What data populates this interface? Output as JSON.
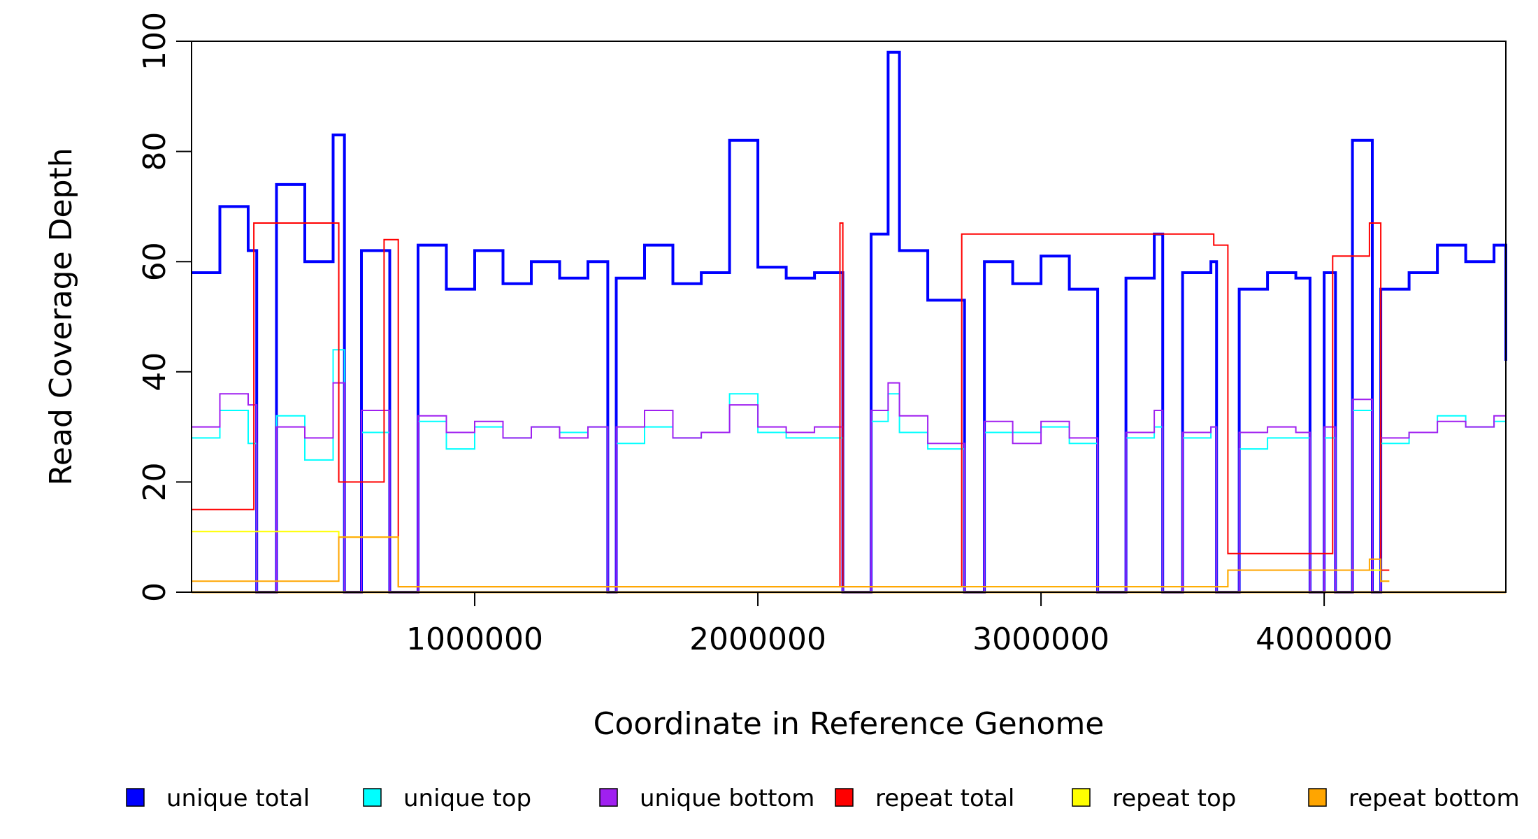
{
  "chart_data": {
    "type": "line",
    "title": "",
    "xlabel": "Coordinate in Reference Genome",
    "ylabel": "Read Coverage Depth",
    "xlim": [
      0,
      4641652
    ],
    "ylim": [
      0,
      100
    ],
    "x_ticks": [
      1000000,
      2000000,
      3000000,
      4000000
    ],
    "x_tick_labels": [
      "1000000",
      "2000000",
      "3000000",
      "4000000"
    ],
    "y_ticks": [
      0,
      20,
      40,
      60,
      80,
      100
    ],
    "y_tick_labels": [
      "0",
      "20",
      "40",
      "60",
      "80",
      "100"
    ],
    "grid": false,
    "legend_position": "bottom",
    "series": [
      {
        "name": "unique total",
        "color": "#0000ff",
        "x": [
          0,
          100000,
          200000,
          230000,
          300000,
          400000,
          500000,
          540000,
          600000,
          700000,
          800000,
          900000,
          1000000,
          1100000,
          1200000,
          1300000,
          1400000,
          1470000,
          1500000,
          1600000,
          1700000,
          1800000,
          1900000,
          2000000,
          2100000,
          2200000,
          2300000,
          2400000,
          2460000,
          2500000,
          2600000,
          2730000,
          2800000,
          2900000,
          3000000,
          3100000,
          3200000,
          3300000,
          3400000,
          3430000,
          3500000,
          3600000,
          3620000,
          3700000,
          3800000,
          3900000,
          3950000,
          4000000,
          4040000,
          4100000,
          4170000,
          4200000,
          4300000,
          4400000,
          4500000,
          4600000,
          4641652
        ],
        "y": [
          58,
          70,
          62,
          0,
          74,
          60,
          83,
          0,
          62,
          0,
          63,
          55,
          62,
          56,
          60,
          57,
          60,
          0,
          57,
          63,
          56,
          58,
          82,
          59,
          57,
          58,
          0,
          65,
          98,
          62,
          53,
          0,
          60,
          56,
          61,
          55,
          0,
          57,
          65,
          0,
          58,
          60,
          0,
          55,
          58,
          57,
          0,
          58,
          0,
          82,
          0,
          55,
          58,
          63,
          60,
          63,
          42
        ]
      },
      {
        "name": "unique top",
        "color": "#00ffff",
        "x": [
          0,
          100000,
          200000,
          230000,
          300000,
          400000,
          500000,
          540000,
          600000,
          700000,
          800000,
          900000,
          1000000,
          1100000,
          1200000,
          1300000,
          1400000,
          1470000,
          1500000,
          1600000,
          1700000,
          1800000,
          1900000,
          2000000,
          2100000,
          2200000,
          2300000,
          2400000,
          2460000,
          2500000,
          2600000,
          2730000,
          2800000,
          2900000,
          3000000,
          3100000,
          3200000,
          3300000,
          3400000,
          3430000,
          3500000,
          3600000,
          3620000,
          3700000,
          3800000,
          3900000,
          3950000,
          4000000,
          4040000,
          4100000,
          4170000,
          4200000,
          4300000,
          4400000,
          4500000,
          4600000,
          4641652
        ],
        "y": [
          28,
          33,
          27,
          0,
          32,
          24,
          44,
          0,
          29,
          0,
          31,
          26,
          30,
          28,
          30,
          29,
          30,
          0,
          27,
          30,
          28,
          29,
          36,
          29,
          28,
          28,
          0,
          31,
          36,
          29,
          26,
          0,
          29,
          29,
          30,
          27,
          0,
          28,
          30,
          0,
          28,
          30,
          0,
          26,
          28,
          28,
          0,
          28,
          0,
          33,
          0,
          27,
          29,
          32,
          30,
          31,
          24
        ]
      },
      {
        "name": "unique bottom",
        "color": "#a020f0",
        "x": [
          0,
          100000,
          200000,
          230000,
          300000,
          400000,
          500000,
          540000,
          600000,
          700000,
          800000,
          900000,
          1000000,
          1100000,
          1200000,
          1300000,
          1400000,
          1470000,
          1500000,
          1600000,
          1700000,
          1800000,
          1900000,
          2000000,
          2100000,
          2200000,
          2300000,
          2400000,
          2460000,
          2500000,
          2600000,
          2730000,
          2800000,
          2900000,
          3000000,
          3100000,
          3200000,
          3300000,
          3400000,
          3430000,
          3500000,
          3600000,
          3620000,
          3700000,
          3800000,
          3900000,
          3950000,
          4000000,
          4040000,
          4100000,
          4170000,
          4200000,
          4300000,
          4400000,
          4500000,
          4600000,
          4641652
        ],
        "y": [
          30,
          36,
          34,
          0,
          30,
          28,
          38,
          0,
          33,
          0,
          32,
          29,
          31,
          28,
          30,
          28,
          30,
          0,
          30,
          33,
          28,
          29,
          34,
          30,
          29,
          30,
          0,
          33,
          38,
          32,
          27,
          0,
          31,
          27,
          31,
          28,
          0,
          29,
          33,
          0,
          29,
          30,
          0,
          29,
          30,
          29,
          0,
          30,
          0,
          35,
          0,
          28,
          29,
          31,
          30,
          32,
          22
        ]
      },
      {
        "name": "repeat total",
        "color": "#ff0000",
        "x": [
          0,
          220000,
          520000,
          680000,
          730000,
          2290000,
          2300000,
          2720000,
          3430000,
          3610000,
          3660000,
          4030000,
          4160000,
          4200000
        ],
        "y": [
          15,
          67,
          20,
          64,
          1,
          67,
          1,
          65,
          65,
          63,
          7,
          61,
          67,
          4
        ]
      },
      {
        "name": "repeat top",
        "color": "#ffff00",
        "x": [
          0,
          520000,
          730000,
          3660000,
          4200000
        ],
        "y": [
          11,
          10,
          1,
          4,
          2
        ]
      },
      {
        "name": "repeat bottom",
        "color": "#ffa500",
        "x": [
          0,
          520000,
          730000,
          3660000,
          4160000,
          4200000
        ],
        "y": [
          2,
          10,
          1,
          4,
          6,
          2
        ]
      }
    ]
  }
}
